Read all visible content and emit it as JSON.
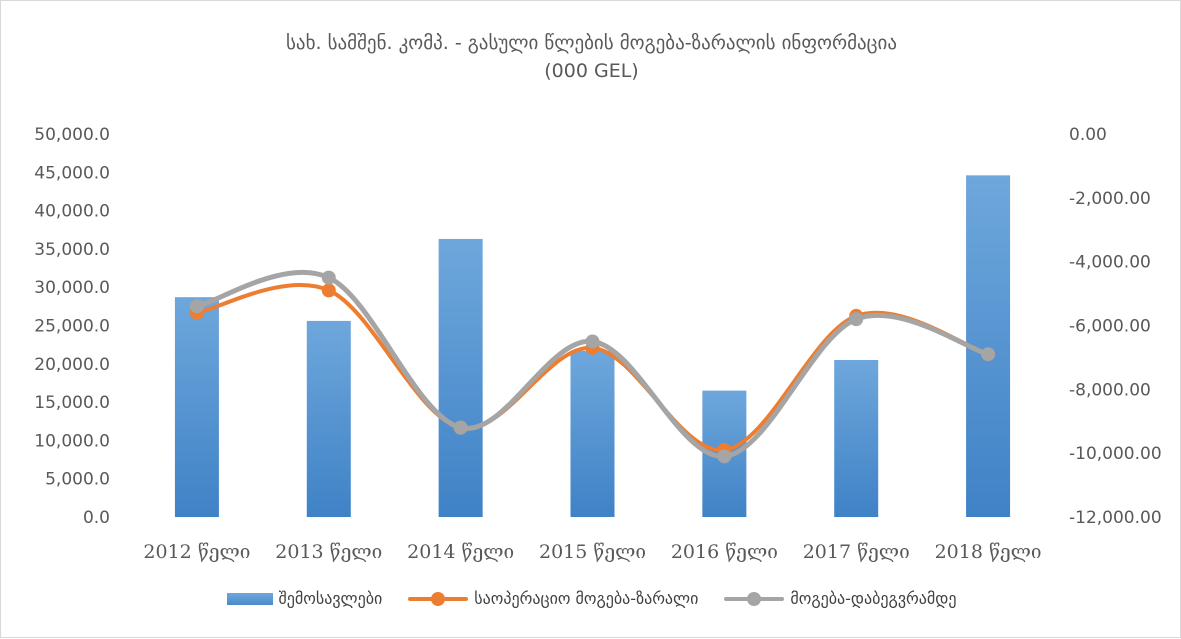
{
  "chart_data": {
    "type": "bar",
    "title_line1": "სახ. სამშენ. კომპ. - გასული წლების მოგება-ზარალის ინფორმაცია",
    "title_line2": "(000 GEL)",
    "categories": [
      "2012 წელი",
      "2013 წელი",
      "2014 წელი",
      "2015 წელი",
      "2016 წელი",
      "2017 წელი",
      "2018 წელი"
    ],
    "series": [
      {
        "name": "შემოსავლები",
        "type": "bar",
        "axis": "left",
        "color": "#5b9bd5",
        "values": [
          28700,
          25600,
          36300,
          21700,
          16500,
          20500,
          44600
        ]
      },
      {
        "name": "საოპერაციო მოგება-ზარალი",
        "type": "line",
        "axis": "right",
        "color": "#ed7d31",
        "values": [
          -5600,
          -4900,
          -9200,
          -6700,
          -9900,
          -5700,
          -6900
        ]
      },
      {
        "name": "მოგება-დაბეგვრამდე",
        "type": "line",
        "axis": "right",
        "color": "#a5a5a5",
        "values": [
          -5400,
          -4500,
          -9200,
          -6500,
          -10100,
          -5800,
          -6900
        ]
      }
    ],
    "y_left": {
      "min": 0,
      "max": 50000,
      "step": 5000,
      "tick_labels": [
        "0.0",
        "5,000.0",
        "10,000.0",
        "15,000.0",
        "20,000.0",
        "25,000.0",
        "30,000.0",
        "35,000.0",
        "40,000.0",
        "45,000.0",
        "50,000.0"
      ]
    },
    "y_right": {
      "min": -12000,
      "max": 0,
      "step": 2000,
      "tick_labels": [
        "-12,000.00",
        "-10,000.00",
        "-8,000.00",
        "-6,000.00",
        "-4,000.00",
        "-2,000.00",
        "0.00"
      ]
    },
    "grid": false,
    "legend_position": "bottom"
  }
}
